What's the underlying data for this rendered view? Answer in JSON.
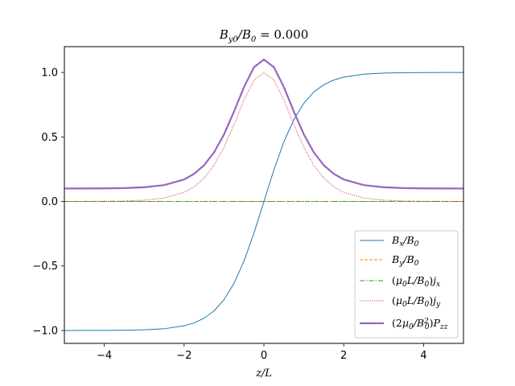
{
  "chart_data": {
    "type": "line",
    "title": "B_y0/B_0 = 0.000",
    "xlabel": "z/L",
    "ylabel": "",
    "xlim": [
      -5,
      5
    ],
    "ylim": [
      -1.1,
      1.2
    ],
    "xticks": [
      -4,
      -2,
      0,
      2,
      4
    ],
    "xtick_labels": [
      "−4",
      "−2",
      "0",
      "2",
      "4"
    ],
    "yticks": [
      -1.0,
      -0.5,
      0.0,
      0.5,
      1.0
    ],
    "ytick_labels": [
      "−1.0",
      "−0.5",
      "0.0",
      "0.5",
      "1.0"
    ],
    "grid": false,
    "legend_position": "lower-right",
    "x": [
      -5,
      -4.5,
      -4,
      -3.5,
      -3,
      -2.5,
      -2,
      -1.75,
      -1.5,
      -1.25,
      -1,
      -0.75,
      -0.5,
      -0.25,
      0,
      0.25,
      0.5,
      0.75,
      1,
      1.25,
      1.5,
      1.75,
      2,
      2.5,
      3,
      3.5,
      4,
      4.5,
      5
    ],
    "series": [
      {
        "name": "B_x/B_0",
        "color": "#1f77b4",
        "style": "solid",
        "width": 1.0,
        "values": [
          -1.0,
          -0.9998,
          -0.9993,
          -0.9982,
          -0.9951,
          -0.9866,
          -0.964,
          -0.9414,
          -0.9051,
          -0.8483,
          -0.7616,
          -0.6351,
          -0.4621,
          -0.2449,
          0.0,
          0.2449,
          0.4621,
          0.6351,
          0.7616,
          0.8483,
          0.9051,
          0.9414,
          0.964,
          0.9866,
          0.9951,
          0.9982,
          0.9993,
          0.9998,
          1.0
        ]
      },
      {
        "name": "B_y/B_0",
        "color": "#ff7f0e",
        "style": "dashed",
        "width": 1.0,
        "values": [
          0,
          0,
          0,
          0,
          0,
          0,
          0,
          0,
          0,
          0,
          0,
          0,
          0,
          0,
          0,
          0,
          0,
          0,
          0,
          0,
          0,
          0,
          0,
          0,
          0,
          0,
          0,
          0,
          0
        ]
      },
      {
        "name": "(μ_0 L/B_0) j_x",
        "color": "#2ca02c",
        "style": "dashdot",
        "width": 1.0,
        "values": [
          0,
          0,
          0,
          0,
          0,
          0,
          0,
          0,
          0,
          0,
          0,
          0,
          0,
          0,
          0,
          0,
          0,
          0,
          0,
          0,
          0,
          0,
          0,
          0,
          0,
          0,
          0,
          0,
          0
        ]
      },
      {
        "name": "(μ_0 L/B_0) j_y",
        "color": "#d62728",
        "style": "dotted",
        "width": 1.0,
        "values": [
          0.0002,
          0.0005,
          0.0013,
          0.0036,
          0.0099,
          0.0266,
          0.0707,
          0.1138,
          0.1807,
          0.2804,
          0.42,
          0.5966,
          0.7864,
          0.94,
          1.0,
          0.94,
          0.7864,
          0.5966,
          0.42,
          0.2804,
          0.1807,
          0.1138,
          0.0707,
          0.0266,
          0.0099,
          0.0036,
          0.0013,
          0.0005,
          0.0002
        ]
      },
      {
        "name": "(2μ_0/B_0²) P_zz",
        "color": "#9467bd",
        "style": "solid",
        "width": 2.2,
        "values": [
          0.1002,
          0.1005,
          0.1013,
          0.1036,
          0.1099,
          0.1266,
          0.1707,
          0.2138,
          0.2807,
          0.3804,
          0.52,
          0.6966,
          0.8864,
          1.04,
          1.1,
          1.04,
          0.8864,
          0.6966,
          0.52,
          0.3804,
          0.2807,
          0.2138,
          0.1707,
          0.1266,
          0.1099,
          0.1036,
          0.1013,
          0.1005,
          0.1002
        ]
      }
    ]
  }
}
